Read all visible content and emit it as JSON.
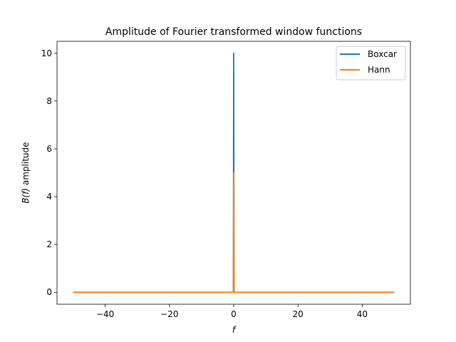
{
  "chart_data": {
    "type": "line",
    "title": "Amplitude of Fourier transformed window functions",
    "xlabel": "f",
    "ylabel_italic": "B(f)",
    "ylabel_rest": " amplitude",
    "xlim": [
      -55,
      55
    ],
    "ylim": [
      -0.5,
      10.5
    ],
    "xticks": [
      -40,
      -20,
      0,
      20,
      40
    ],
    "xtick_labels": [
      "−40",
      "−20",
      "0",
      "20",
      "40"
    ],
    "yticks": [
      0,
      2,
      4,
      6,
      8,
      10
    ],
    "ytick_labels": [
      "0",
      "2",
      "4",
      "6",
      "8",
      "10"
    ],
    "grid": false,
    "legend_position": "top-right",
    "series": [
      {
        "name": "Boxcar",
        "color": "#1f77b4",
        "x": [
          -50,
          -0.2,
          -0.1,
          0,
          0.1,
          0.2,
          50
        ],
        "y": [
          0,
          0,
          0,
          10,
          0,
          0,
          0
        ]
      },
      {
        "name": "Hann",
        "color": "#ff7f0e",
        "x": [
          -50,
          -0.2,
          -0.1,
          0,
          0.1,
          0.2,
          50
        ],
        "y": [
          0,
          0,
          0,
          5,
          0,
          0,
          0
        ]
      }
    ]
  }
}
